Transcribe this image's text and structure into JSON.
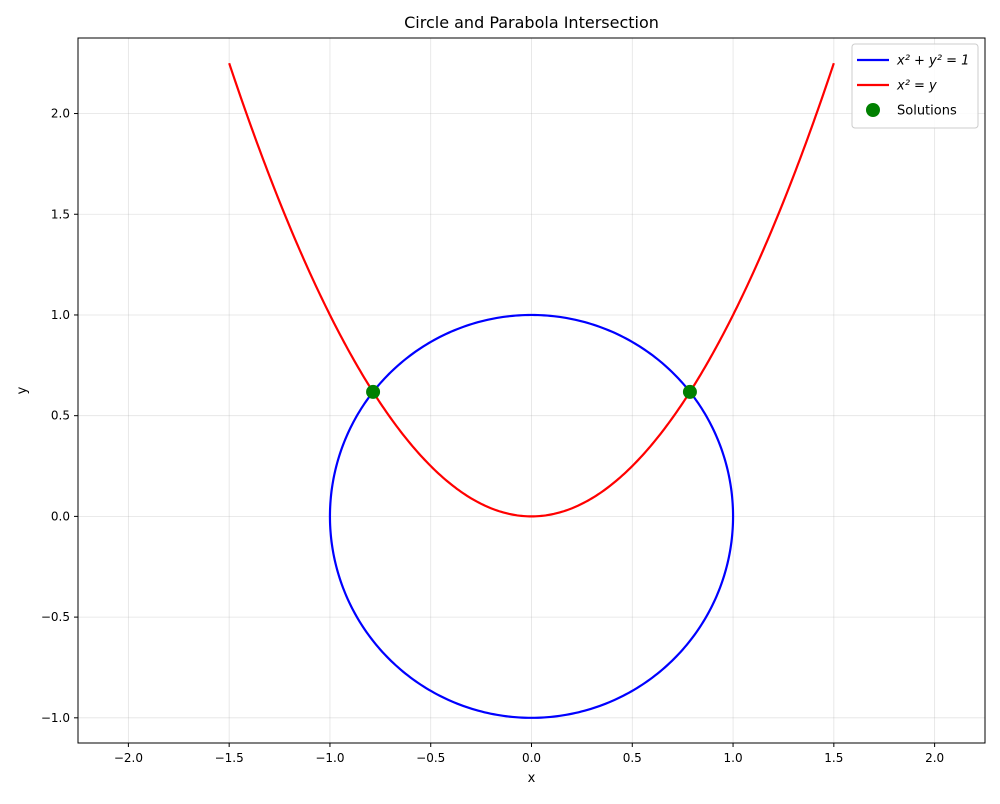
{
  "chart_data": {
    "type": "line",
    "title": "Circle and Parabola Intersection",
    "xlabel": "x",
    "ylabel": "y",
    "xlim": [
      -2.25,
      2.25
    ],
    "ylim": [
      -1.125,
      2.375
    ],
    "xticks": [
      -2.0,
      -1.5,
      -1.0,
      -0.5,
      0.0,
      0.5,
      1.0,
      1.5,
      2.0
    ],
    "xtick_labels": [
      "−2.0",
      "−1.5",
      "−1.0",
      "−0.5",
      "0.0",
      "0.5",
      "1.0",
      "1.5",
      "2.0"
    ],
    "yticks": [
      -1.0,
      -0.5,
      0.0,
      0.5,
      1.0,
      1.5,
      2.0
    ],
    "ytick_labels": [
      "−1.0",
      "−0.5",
      "0.0",
      "0.5",
      "1.0",
      "1.5",
      "2.0"
    ],
    "grid": true,
    "legend_position": "top-right",
    "series": [
      {
        "name": "x² + y² = 1",
        "kind": "line",
        "color": "#0000ff",
        "equation": "circle",
        "center": [
          0,
          0
        ],
        "radius": 1
      },
      {
        "name": "x² = y",
        "kind": "line",
        "color": "#ff0000",
        "equation": "parabola",
        "x_range": [
          -1.5,
          1.5
        ]
      },
      {
        "name": "Solutions",
        "kind": "scatter",
        "color": "#008000",
        "points": [
          {
            "x": -0.786,
            "y": 0.618
          },
          {
            "x": 0.786,
            "y": 0.618
          }
        ]
      }
    ]
  }
}
